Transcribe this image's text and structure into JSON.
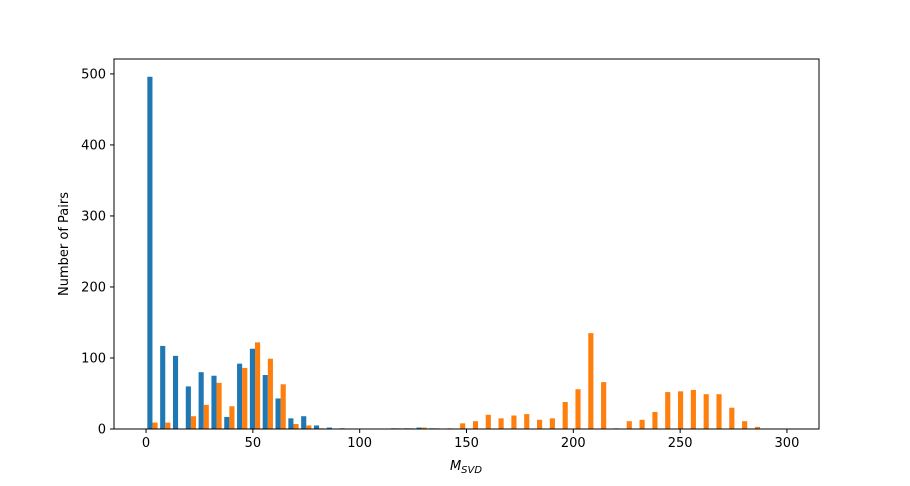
{
  "chart_data": {
    "type": "histogram",
    "xlabel": "M",
    "xlabel_sub": "SVD",
    "ylabel": "Number of Pairs",
    "bins": [
      0,
      6,
      12,
      18,
      24,
      30,
      36,
      42,
      48,
      54,
      60,
      66,
      72,
      78,
      84,
      90,
      96,
      102,
      108,
      114,
      120,
      126,
      132,
      138,
      144,
      150,
      156,
      162,
      168,
      174,
      180,
      186,
      192,
      198,
      204,
      210,
      216,
      222,
      228,
      234,
      240,
      246,
      252,
      258,
      264,
      270,
      276,
      282,
      288,
      294,
      300
    ],
    "series": [
      {
        "color": "#1f77b4",
        "values": [
          496,
          117,
          103,
          60,
          80,
          75,
          17,
          92,
          113,
          76,
          43,
          15,
          18,
          5,
          2,
          1,
          0,
          0,
          0,
          1,
          1,
          2,
          1,
          0,
          0,
          0,
          0,
          0,
          0,
          0,
          0,
          0,
          0,
          0,
          0,
          0,
          0,
          0,
          0,
          0,
          0,
          0,
          0,
          0,
          0,
          0,
          0,
          0,
          0,
          0
        ]
      },
      {
        "color": "#ff7f0e",
        "values": [
          9,
          9,
          0,
          18,
          34,
          65,
          32,
          86,
          122,
          99,
          63,
          7,
          5,
          1,
          0,
          0,
          0,
          0,
          0,
          1,
          1,
          2,
          1,
          1,
          8,
          11,
          20,
          15,
          19,
          21,
          13,
          15,
          38,
          56,
          135,
          66,
          1,
          11,
          13,
          24,
          52,
          53,
          55,
          49,
          49,
          30,
          11,
          3,
          0,
          0
        ]
      }
    ],
    "xlim": [
      -15,
      315
    ],
    "xticks": [
      0,
      50,
      100,
      150,
      200,
      250,
      300
    ],
    "ylim": [
      0,
      521
    ],
    "yticks": [
      0,
      100,
      200,
      300,
      400,
      500
    ]
  }
}
